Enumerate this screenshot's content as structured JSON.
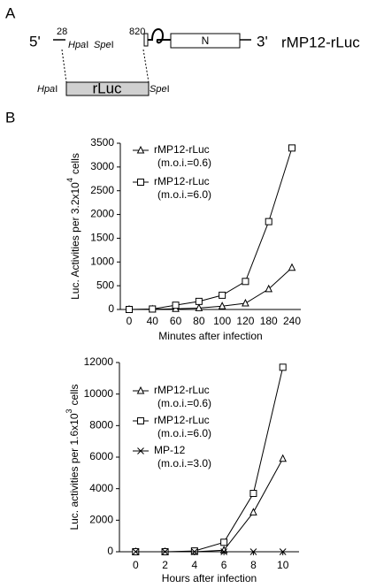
{
  "panel_labels": [
    "A",
    "B"
  ],
  "diagram": {
    "five_prime": "5'",
    "three_prime": "3'",
    "pos_28": "28",
    "pos_820": "820",
    "hpa": {
      "italic": "Hpa",
      "roman": "I"
    },
    "spe": {
      "italic": "Spe",
      "roman": "I"
    },
    "n_segment": "N",
    "construct": "rMP12-rLuc",
    "insert": "rLuc"
  },
  "chart_data": [
    {
      "type": "line",
      "categories": [
        "0",
        "40",
        "60",
        "80",
        "100",
        "120",
        "180",
        "240"
      ],
      "series": [
        {
          "name": "rMP12-rLuc",
          "note": "(m.o.i.=0.6)",
          "marker": "triangle",
          "color": "#000000",
          "values": [
            0,
            5,
            15,
            30,
            70,
            130,
            430,
            880
          ]
        },
        {
          "name": "rMP12-rLuc",
          "note": "(m.o.i.=6.0)",
          "marker": "square",
          "color": "#000000",
          "values": [
            0,
            10,
            90,
            170,
            300,
            590,
            1850,
            3400
          ]
        }
      ],
      "ylim": [
        0,
        3500
      ],
      "yticks": [
        0,
        500,
        1000,
        1500,
        2000,
        2500,
        3000,
        3500
      ],
      "xlabel": "Minutes after infection",
      "ylabel": {
        "base": "Luc. Activities per 3.2x10",
        "exp": "4",
        "unit": "cells"
      }
    },
    {
      "type": "line",
      "x": [
        0,
        2,
        4,
        6,
        8,
        10
      ],
      "series": [
        {
          "name": "rMP12-rLuc",
          "note": "(m.o.i.=0.6)",
          "marker": "triangle",
          "color": "#000000",
          "values": [
            0,
            0,
            0,
            100,
            2500,
            5900
          ]
        },
        {
          "name": "rMP12-rLuc",
          "note": "(m.o.i.=6.0)",
          "marker": "square",
          "color": "#000000",
          "values": [
            0,
            0,
            50,
            600,
            3700,
            11700
          ]
        },
        {
          "name": "MP-12",
          "note": "(m.o.i.=3.0)",
          "marker": "x",
          "color": "#000000",
          "values": [
            0,
            0,
            0,
            0,
            0,
            0
          ]
        }
      ],
      "xlim": [
        -1.1,
        11.1
      ],
      "xticks": [
        0,
        2,
        4,
        6,
        8,
        10
      ],
      "ylim": [
        0,
        12000
      ],
      "yticks": [
        0,
        2000,
        4000,
        6000,
        8000,
        10000,
        12000
      ],
      "xlabel": "Hours after infection",
      "ylabel": {
        "base": "Luc. activities per 1.6x10",
        "exp": "3",
        "unit": "cells"
      }
    }
  ]
}
